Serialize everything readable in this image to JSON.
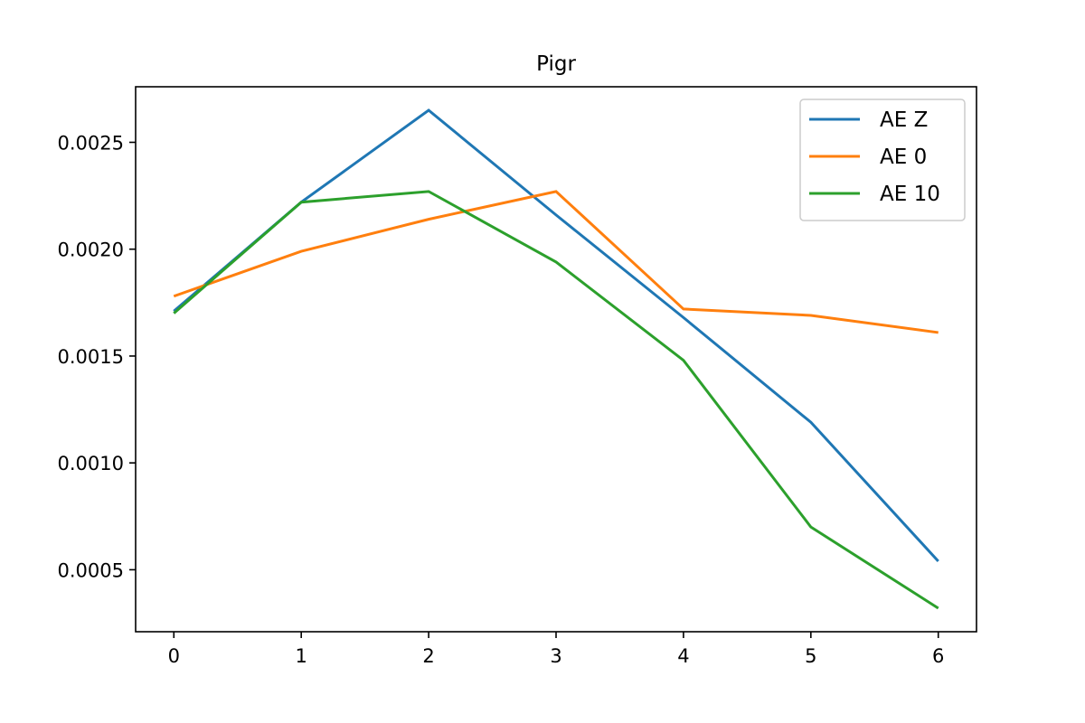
{
  "chart_data": {
    "type": "line",
    "title": "Pigr",
    "xlabel": "",
    "ylabel": "",
    "x": [
      0,
      1,
      2,
      3,
      4,
      5,
      6
    ],
    "xticks": [
      "0",
      "1",
      "2",
      "3",
      "4",
      "5",
      "6"
    ],
    "yticks": [
      "0.0005",
      "0.0010",
      "0.0015",
      "0.0020",
      "0.0025"
    ],
    "ytick_values": [
      0.0005,
      0.001,
      0.0015,
      0.002,
      0.0025
    ],
    "xlim": [
      -0.3,
      6.3
    ],
    "ylim": [
      0.00021,
      0.00276
    ],
    "grid": false,
    "legend_position": "upper right",
    "series": [
      {
        "name": "AE Z",
        "color": "#1f77b4",
        "values": [
          0.00171,
          0.00222,
          0.00265,
          0.00216,
          0.00168,
          0.00119,
          0.00054
        ]
      },
      {
        "name": "AE 0",
        "color": "#ff7f0e",
        "values": [
          0.00178,
          0.00199,
          0.00214,
          0.00227,
          0.00172,
          0.00169,
          0.00161
        ]
      },
      {
        "name": "AE 10",
        "color": "#2ca02c",
        "values": [
          0.0017,
          0.00222,
          0.00227,
          0.00194,
          0.00148,
          0.0007,
          0.00032
        ]
      }
    ]
  }
}
